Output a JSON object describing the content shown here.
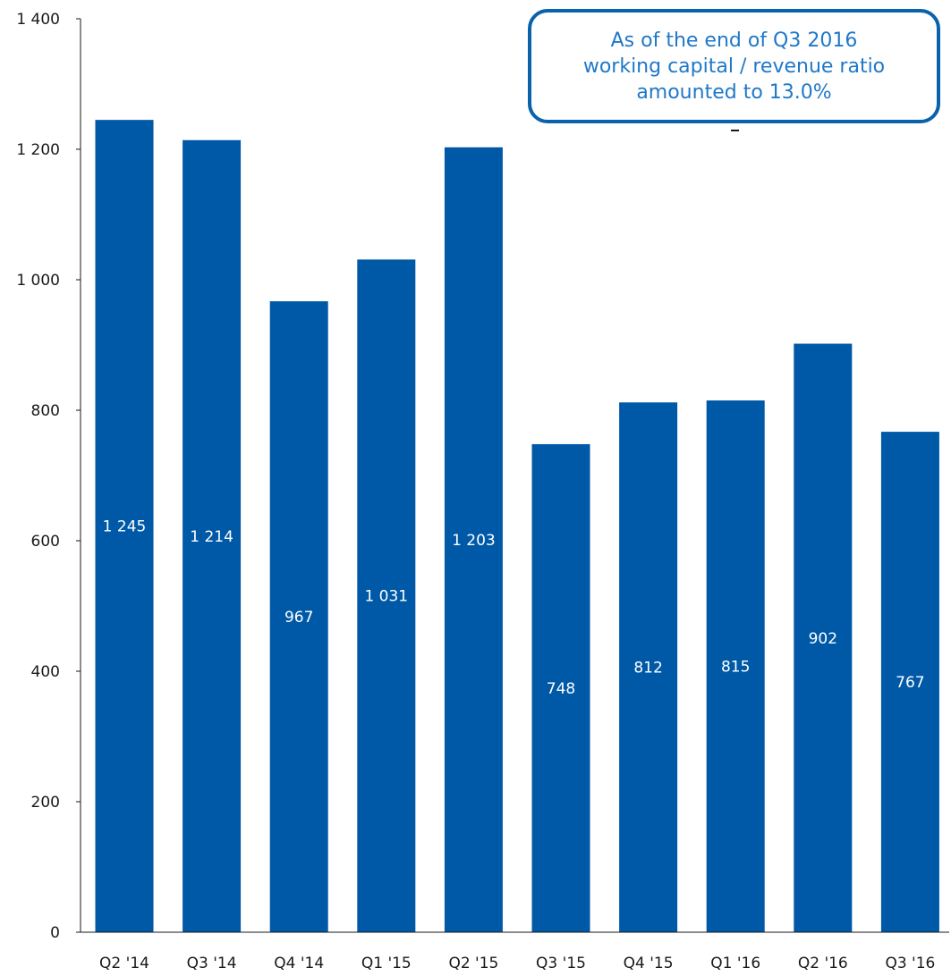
{
  "chart_data": {
    "type": "bar",
    "categories": [
      "Q2 '14",
      "Q3 '14",
      "Q4 '14",
      "Q1 '15",
      "Q2 '15",
      "Q3 '15",
      "Q4 '15",
      "Q1 '16",
      "Q2 '16",
      "Q3 '16"
    ],
    "values": [
      1245,
      1214,
      967,
      1031,
      1203,
      748,
      812,
      815,
      902,
      767
    ],
    "data_labels": [
      "1 245",
      "1 214",
      "967",
      "1 031",
      "1 203",
      "748",
      "812",
      "815",
      "902",
      "767"
    ],
    "yticks": [
      0,
      200,
      400,
      600,
      800,
      1000,
      1200,
      1400
    ],
    "ytick_labels": [
      "0",
      "200",
      "400",
      "600",
      "800",
      "1 000",
      "1 200",
      "1 400"
    ],
    "ylim": [
      0,
      1400
    ],
    "grid": false,
    "bar_color": "#0059a7",
    "label_color": "#ffffff"
  },
  "annotation": {
    "lines": [
      "As of the end of Q3 2016",
      "working capital / revenue ratio",
      "amounted to 13.0%"
    ],
    "border_color": "#0a62ad",
    "text_color": "#1f78c8"
  }
}
